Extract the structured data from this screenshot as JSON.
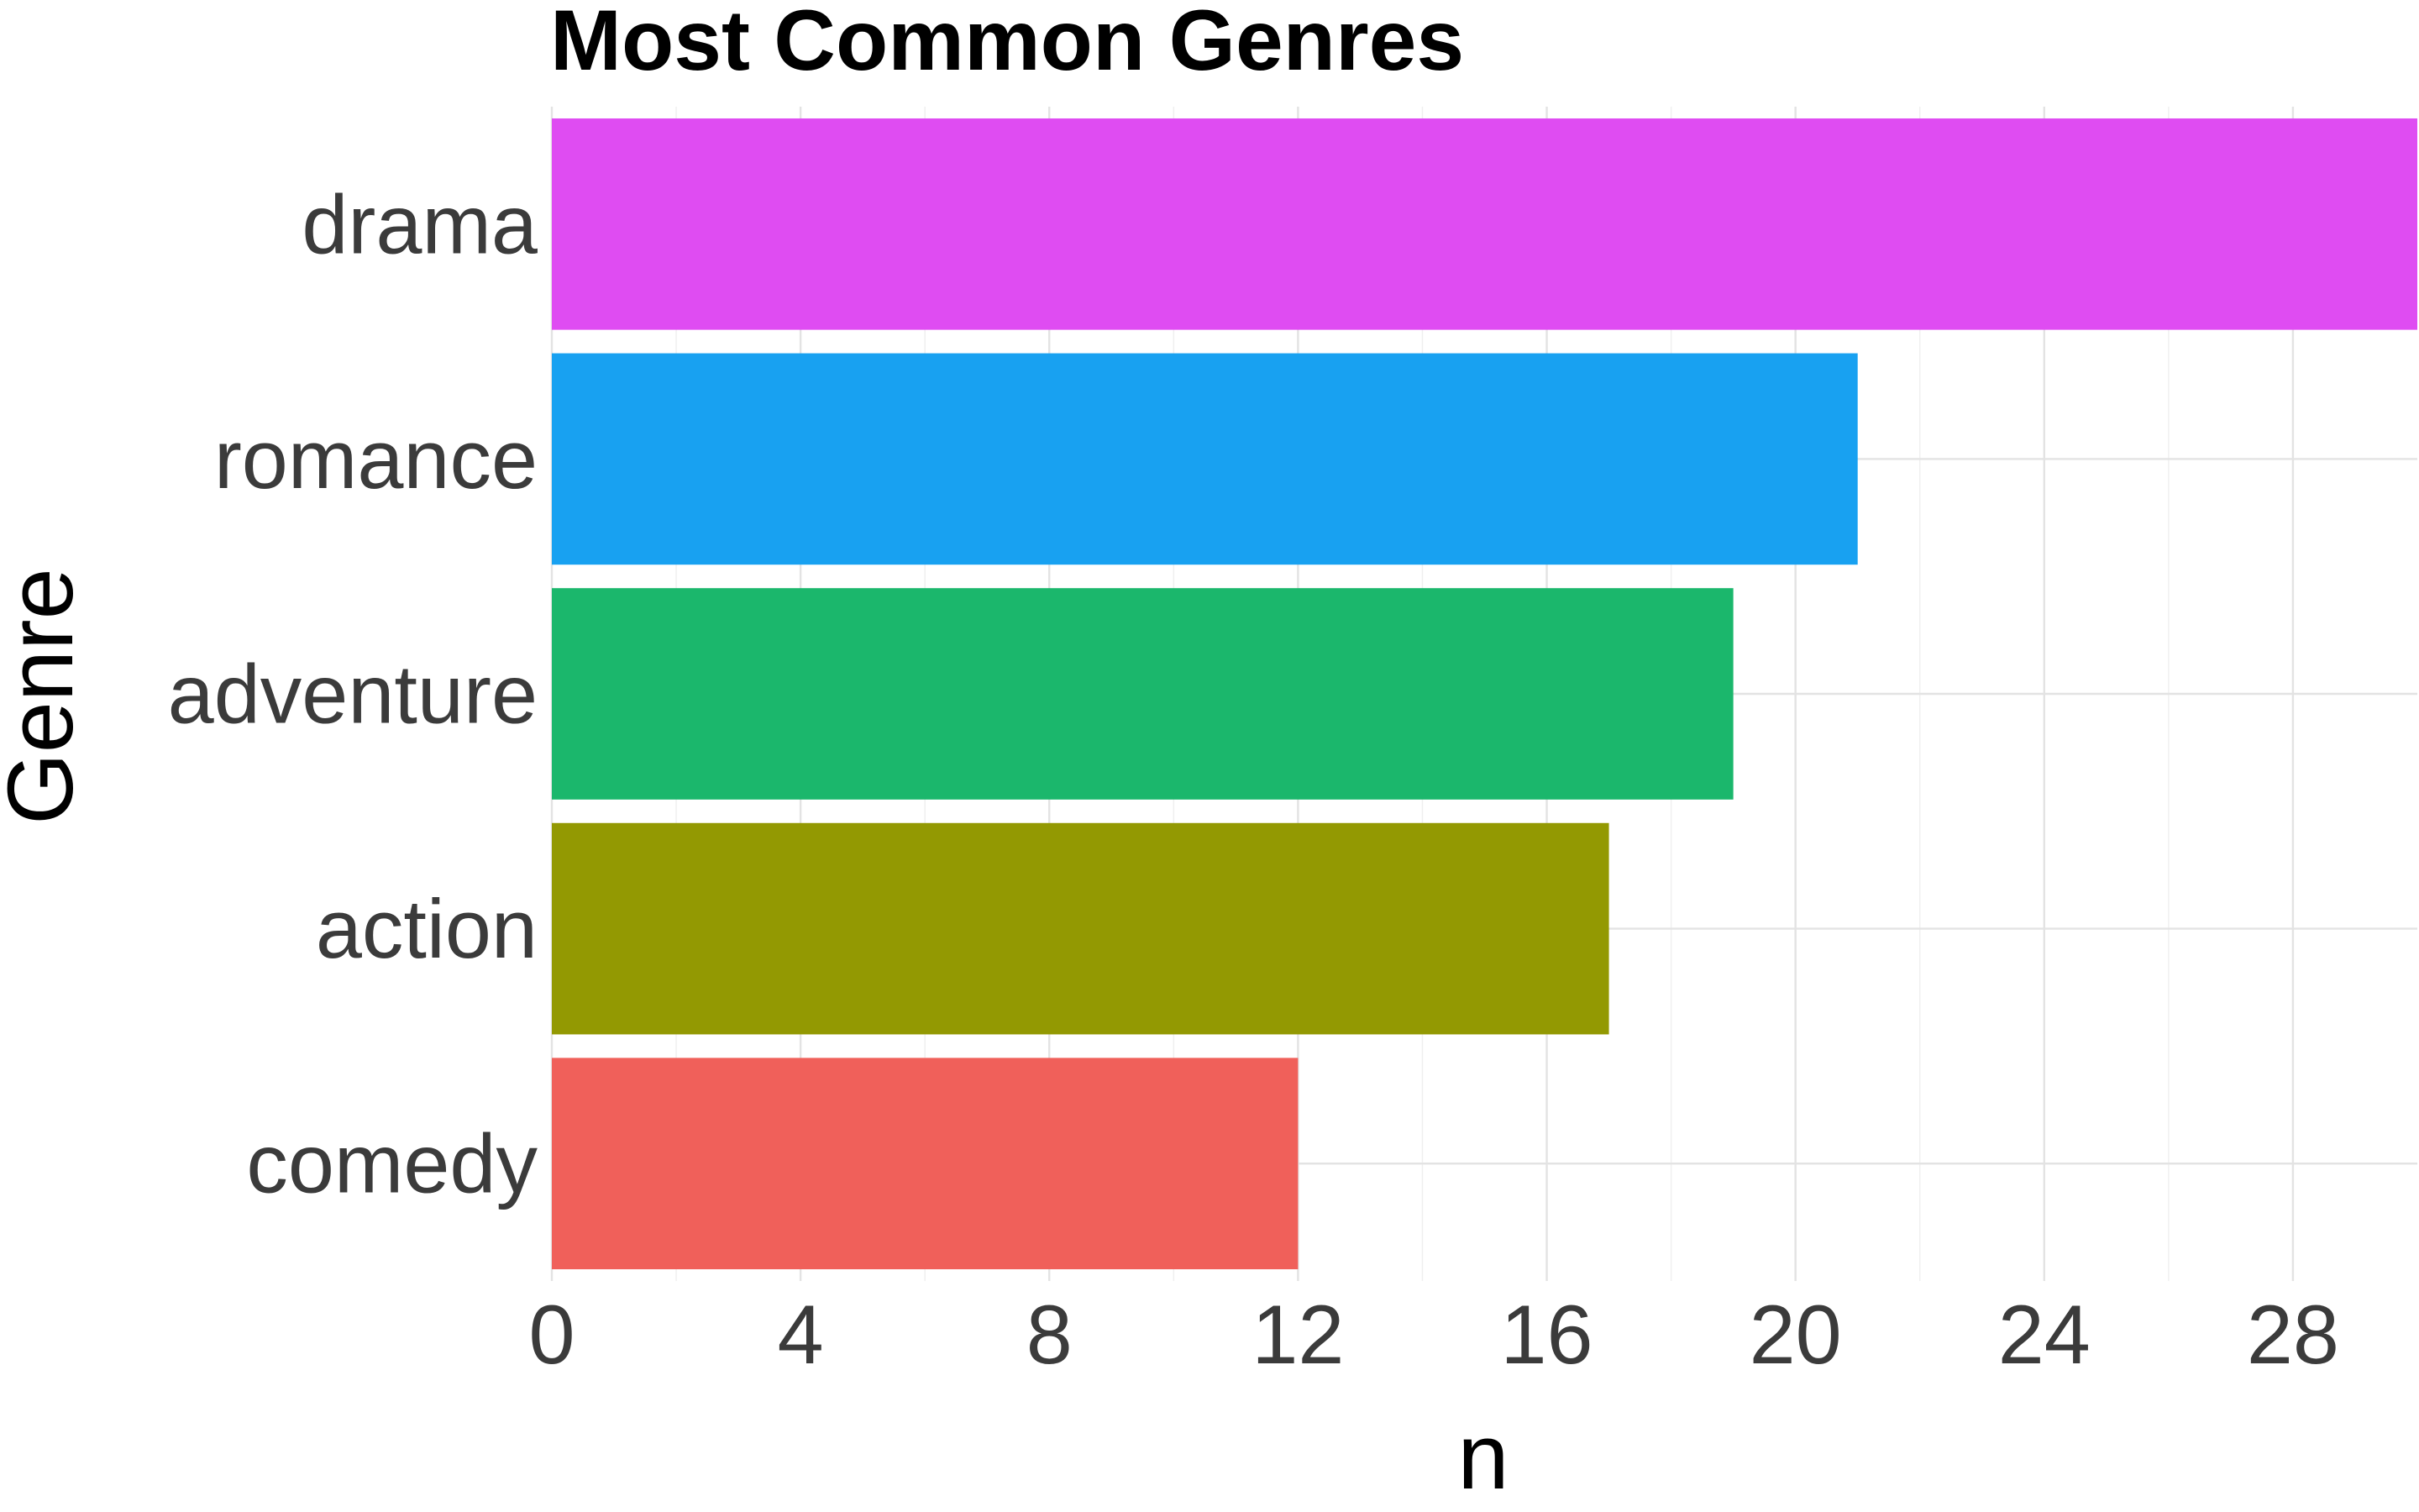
{
  "chart_data": {
    "type": "bar",
    "orientation": "horizontal",
    "title": "Most Common Genres",
    "xlabel": "n",
    "ylabel": "Genre",
    "categories": [
      "comedy",
      "action",
      "adventure",
      "romance",
      "drama"
    ],
    "values": [
      12,
      17,
      19,
      21,
      30
    ],
    "colors": [
      "#F0605A",
      "#939902",
      "#1BB76C",
      "#18A1F1",
      "#DF4CF2"
    ],
    "xlim": [
      0,
      30
    ],
    "x_ticks": [
      0,
      4,
      8,
      12,
      16,
      20,
      24,
      28
    ],
    "grid": true,
    "legend": "none"
  }
}
